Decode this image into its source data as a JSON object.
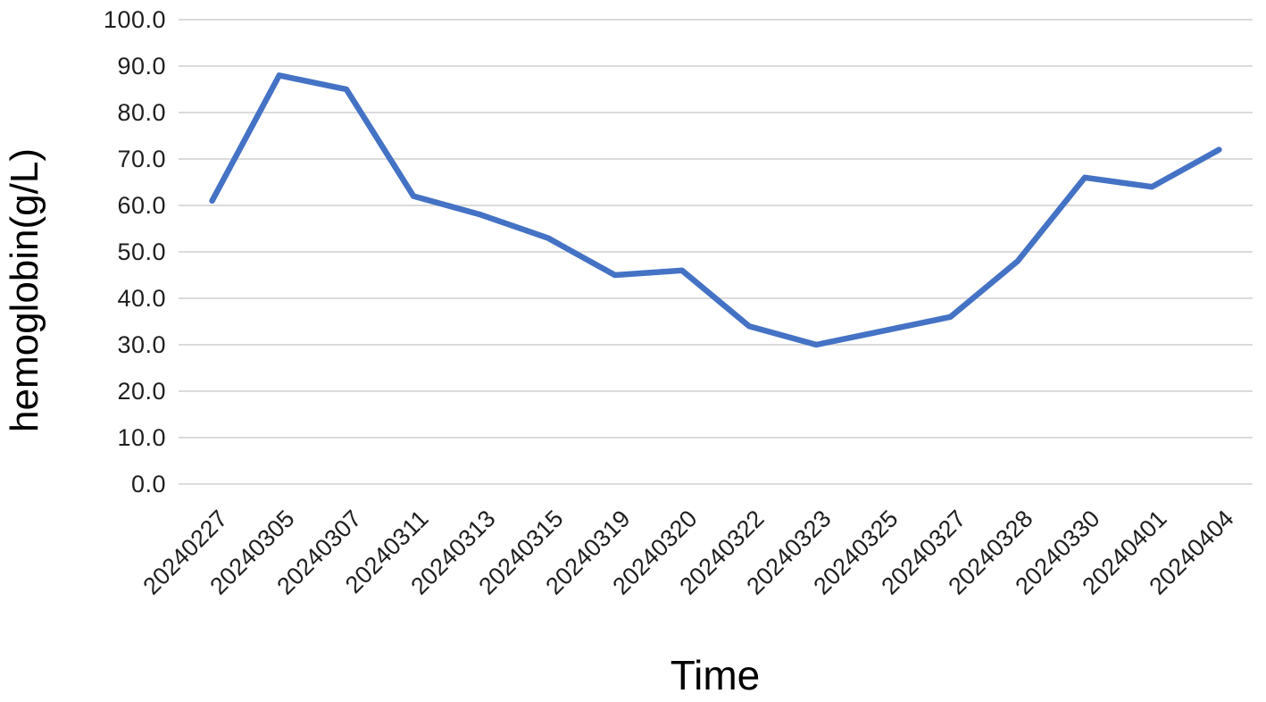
{
  "chart_data": {
    "type": "line",
    "title": "",
    "xlabel": "Time",
    "ylabel": "hemoglobin(g/L)",
    "categories": [
      "20240227",
      "20240305",
      "20240307",
      "20240311",
      "20240313",
      "20240315",
      "20240319",
      "20240320",
      "20240322",
      "20240323",
      "20240325",
      "20240327",
      "20240328",
      "20240330",
      "20240401",
      "20240404"
    ],
    "series": [
      {
        "name": "hemoglobin",
        "values": [
          61,
          88,
          85,
          62,
          58,
          53,
          45,
          46,
          34,
          30,
          33,
          36,
          48,
          66,
          64,
          72
        ]
      }
    ],
    "ylim": [
      0,
      100
    ],
    "ytick_step": 10,
    "ytick_labels": [
      "0.0",
      "10.0",
      "20.0",
      "30.0",
      "40.0",
      "50.0",
      "60.0",
      "70.0",
      "80.0",
      "90.0",
      "100.0"
    ],
    "grid": "horizontal-only",
    "legend_position": "none",
    "line_color": "#4472C4",
    "grid_color": "#DBDBDB",
    "tick_text_color": "#1f1f1f",
    "axis_title_color": "#000000"
  }
}
